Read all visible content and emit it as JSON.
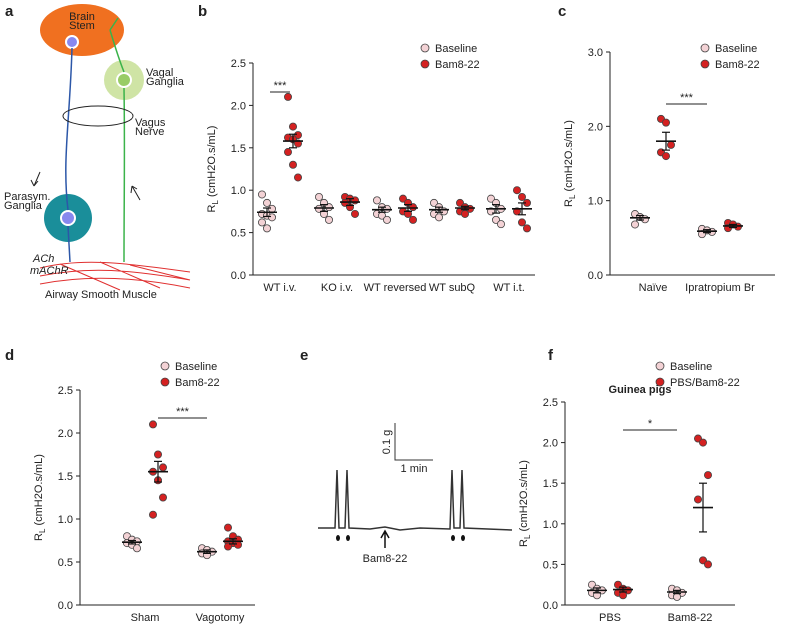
{
  "panel_letters": [
    "a",
    "b",
    "c",
    "d",
    "e",
    "f"
  ],
  "diagram": {
    "brain": [
      "Brain",
      "Stem"
    ],
    "vagal": [
      "Vagal",
      "Ganglia"
    ],
    "nerve": [
      "Vagus",
      "Nerve"
    ],
    "parasym": [
      "Parasym.",
      "Ganglia"
    ],
    "ach": "ACh",
    "machr": "mAChR",
    "muscle": "Airway Smooth Muscle"
  },
  "trace": {
    "scale_y": "0.1 g",
    "scale_x": "1 min",
    "stimulus": "Bam8-22"
  },
  "chart_data": [
    {
      "type": "dot",
      "title": null,
      "ylabel": [
        "R",
        "L",
        "(cmH2O.s/mL)"
      ],
      "categories": [
        "WT i.v.",
        "KO i.v.",
        "WT reversed",
        "WT subQ",
        "WT i.t."
      ],
      "ylim": [
        0,
        2.5
      ],
      "yticks": [
        {
          "value": 0,
          "label": "0.0"
        },
        0.5,
        {
          "value": 1,
          "label": "1.0"
        },
        1.5,
        {
          "value": 2,
          "label": "2.0"
        },
        2.5
      ],
      "annotation": "***",
      "series": [
        {
          "name": "Baseline",
          "color": "#f3d2d5",
          "values": [
            [
              0.95,
              0.85,
              0.78,
              0.72,
              0.7,
              0.68,
              0.62,
              0.55
            ],
            [
              0.92,
              0.85,
              0.8,
              0.78,
              0.72,
              0.65
            ],
            [
              0.88,
              0.8,
              0.78,
              0.72,
              0.7,
              0.65
            ],
            [
              0.85,
              0.8,
              0.75,
              0.72,
              0.68
            ],
            [
              0.9,
              0.85,
              0.78,
              0.75,
              0.65,
              0.6
            ]
          ],
          "means": [
            0.74,
            0.79,
            0.77,
            0.77,
            0.78
          ],
          "sems": [
            0.05,
            0.04,
            0.03,
            0.03,
            0.05
          ]
        },
        {
          "name": "Bam8-22",
          "color": "#d42121",
          "values": [
            [
              2.1,
              1.75,
              1.65,
              1.62,
              1.6,
              1.55,
              1.45,
              1.3,
              1.15
            ],
            [
              0.92,
              0.9,
              0.88,
              0.85,
              0.8,
              0.72
            ],
            [
              0.9,
              0.85,
              0.8,
              0.75,
              0.72,
              0.65
            ],
            [
              0.85,
              0.8,
              0.78,
              0.75,
              0.72
            ],
            [
              1.0,
              0.92,
              0.85,
              0.75,
              0.62,
              0.55
            ]
          ],
          "means": [
            1.58,
            0.86,
            0.79,
            0.79,
            0.78
          ],
          "sems": [
            0.08,
            0.04,
            0.04,
            0.02,
            0.07
          ]
        }
      ]
    },
    {
      "type": "dot",
      "title": null,
      "ylabel": [
        "R",
        "L",
        "(cmH2O.s/mL)"
      ],
      "categories": [
        "Naïve",
        "Ipratropium Br"
      ],
      "ylim": [
        0,
        3
      ],
      "yticks": [
        {
          "value": 0,
          "label": "0.0"
        },
        {
          "value": 1,
          "label": "1.0"
        },
        {
          "value": 2,
          "label": "2.0"
        },
        {
          "value": 3,
          "label": "3.0"
        }
      ],
      "annotation": "***",
      "series": [
        {
          "name": "Baseline",
          "color": "#f3d2d5",
          "values": [
            [
              0.82,
              0.78,
              0.75,
              0.68
            ],
            [
              0.62,
              0.6,
              0.58,
              0.55
            ]
          ],
          "means": [
            0.77,
            0.59
          ],
          "sems": [
            0.03,
            0.02
          ]
        },
        {
          "name": "Bam8-22",
          "color": "#d42121",
          "values": [
            [
              2.1,
              2.05,
              1.75,
              1.65,
              1.6
            ],
            [
              0.7,
              0.68,
              0.65,
              0.63
            ]
          ],
          "means": [
            1.8,
            0.66
          ],
          "sems": [
            0.12,
            0.02
          ]
        }
      ]
    },
    {
      "type": "dot",
      "title": null,
      "ylabel": [
        "R",
        "L",
        "(cmH2O.s/mL)"
      ],
      "categories": [
        "Sham",
        "Vagotomy"
      ],
      "ylim": [
        0,
        2.5
      ],
      "yticks": [
        {
          "value": 0,
          "label": "0.0"
        },
        0.5,
        {
          "value": 1,
          "label": "1.0"
        },
        1.5,
        {
          "value": 2,
          "label": "2.0"
        },
        2.5
      ],
      "annotation": "***",
      "series": [
        {
          "name": "Baseline",
          "color": "#f3d2d5",
          "values": [
            [
              0.8,
              0.76,
              0.74,
              0.72,
              0.7,
              0.66
            ],
            [
              0.66,
              0.64,
              0.62,
              0.6,
              0.58
            ]
          ],
          "means": [
            0.73,
            0.62
          ],
          "sems": [
            0.02,
            0.02
          ]
        },
        {
          "name": "Bam8-22",
          "color": "#d42121",
          "values": [
            [
              2.1,
              1.75,
              1.6,
              1.55,
              1.45,
              1.25,
              1.05
            ],
            [
              0.9,
              0.8,
              0.76,
              0.74,
              0.72,
              0.7,
              0.68
            ]
          ],
          "means": [
            1.55,
            0.74
          ],
          "sems": [
            0.12,
            0.03
          ]
        }
      ]
    },
    {
      "type": "dot",
      "title": "Guinea pigs",
      "ylabel": [
        "R",
        "L",
        "(cmH2O.s/mL)"
      ],
      "categories": [
        "PBS",
        "Bam8-22"
      ],
      "ylim": [
        0,
        2.5
      ],
      "yticks": [
        {
          "value": 0,
          "label": "0.0"
        },
        0.5,
        {
          "value": 1,
          "label": "1.0"
        },
        1.5,
        {
          "value": 2,
          "label": "2.0"
        },
        2.5
      ],
      "annotation": "*",
      "series": [
        {
          "name": "Baseline",
          "color": "#f3d2d5",
          "values": [
            [
              0.25,
              0.2,
              0.18,
              0.15,
              0.12
            ],
            [
              0.2,
              0.18,
              0.15,
              0.12,
              0.1
            ]
          ],
          "means": [
            0.18,
            0.16
          ],
          "sems": [
            0.03,
            0.02
          ]
        },
        {
          "name": "PBS/Bam8-22",
          "color": "#d42121",
          "values": [
            [
              0.25,
              0.2,
              0.18,
              0.15,
              0.12
            ],
            [
              2.05,
              2.0,
              1.6,
              1.3,
              0.55,
              0.5
            ]
          ],
          "means": [
            0.19,
            1.2
          ],
          "sems": [
            0.03,
            0.3
          ]
        }
      ]
    }
  ]
}
